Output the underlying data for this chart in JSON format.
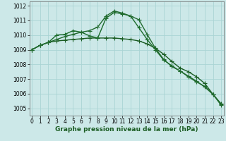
{
  "xlabel": "Graphe pression niveau de la mer (hPa)",
  "bg_color": "#cce8e8",
  "grid_color": "#aad4d4",
  "ylim": [
    1004.5,
    1012.3
  ],
  "xlim": [
    -0.3,
    23.3
  ],
  "yticks": [
    1005,
    1006,
    1007,
    1008,
    1009,
    1010,
    1011,
    1012
  ],
  "xticks": [
    0,
    1,
    2,
    3,
    4,
    5,
    6,
    7,
    8,
    9,
    10,
    11,
    12,
    13,
    14,
    15,
    16,
    17,
    18,
    19,
    20,
    21,
    22,
    23
  ],
  "series": [
    [
      1009.0,
      1009.3,
      1009.5,
      1009.6,
      1009.65,
      1009.7,
      1009.75,
      1009.8,
      1009.8,
      1009.8,
      1009.8,
      1009.75,
      1009.7,
      1009.6,
      1009.4,
      1009.1,
      1008.7,
      1008.2,
      1007.75,
      1007.5,
      1007.15,
      1006.7,
      1005.95,
      1005.3
    ],
    [
      1009.0,
      1009.3,
      1009.5,
      1010.0,
      1010.05,
      1010.3,
      1010.2,
      1009.95,
      1009.8,
      1011.15,
      1011.55,
      1011.45,
      1011.3,
      1010.5,
      1009.7,
      1009.0,
      1008.3,
      1007.9,
      1007.55,
      1007.15,
      1006.8,
      1006.5,
      1005.95,
      1005.25
    ],
    [
      1009.0,
      1009.3,
      1009.5,
      1009.7,
      1009.9,
      1010.05,
      1010.2,
      1010.3,
      1010.55,
      1011.3,
      1011.65,
      1011.5,
      1011.3,
      1011.05,
      1010.05,
      1009.1,
      1008.35,
      1007.85,
      1007.55,
      1007.2,
      1006.85,
      1006.45,
      1005.95,
      1005.2
    ]
  ],
  "line_colors": [
    "#1a5c22",
    "#1a6b2a",
    "#226b30"
  ],
  "marker": "+",
  "marker_size": 4,
  "line_width": 1.0,
  "tick_fontsize": 5.5,
  "label_fontsize": 6.5
}
